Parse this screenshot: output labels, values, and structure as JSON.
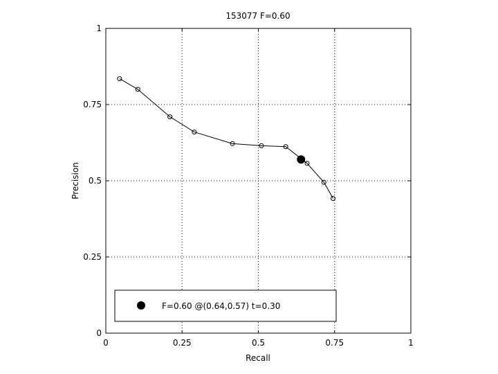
{
  "chart_data": {
    "type": "line",
    "title": "153077 F=0.60",
    "xlabel": "Recall",
    "ylabel": "Precision",
    "xlim": [
      0,
      1
    ],
    "ylim": [
      0,
      1
    ],
    "grid": true,
    "legend_position": "bottom-left",
    "xticks": [
      "0",
      "0.25",
      "0.5",
      "0.75",
      "1"
    ],
    "yticks": [
      "0",
      "0.25",
      "0.5",
      "0.75",
      "1"
    ],
    "series": [
      {
        "x": [
          0.045,
          0.105,
          0.21,
          0.29,
          0.415,
          0.51,
          0.59,
          0.66,
          0.715,
          0.745
        ],
        "y": [
          0.835,
          0.8,
          0.71,
          0.66,
          0.622,
          0.615,
          0.612,
          0.557,
          0.495,
          0.442
        ],
        "color": "#000000",
        "marker": "open-circle"
      }
    ],
    "best_point": {
      "x": 0.64,
      "y": 0.57,
      "label": "F=0.60 @(0.64,0.57) t=0.30",
      "color": "#000000",
      "marker": "filled-circle"
    }
  }
}
